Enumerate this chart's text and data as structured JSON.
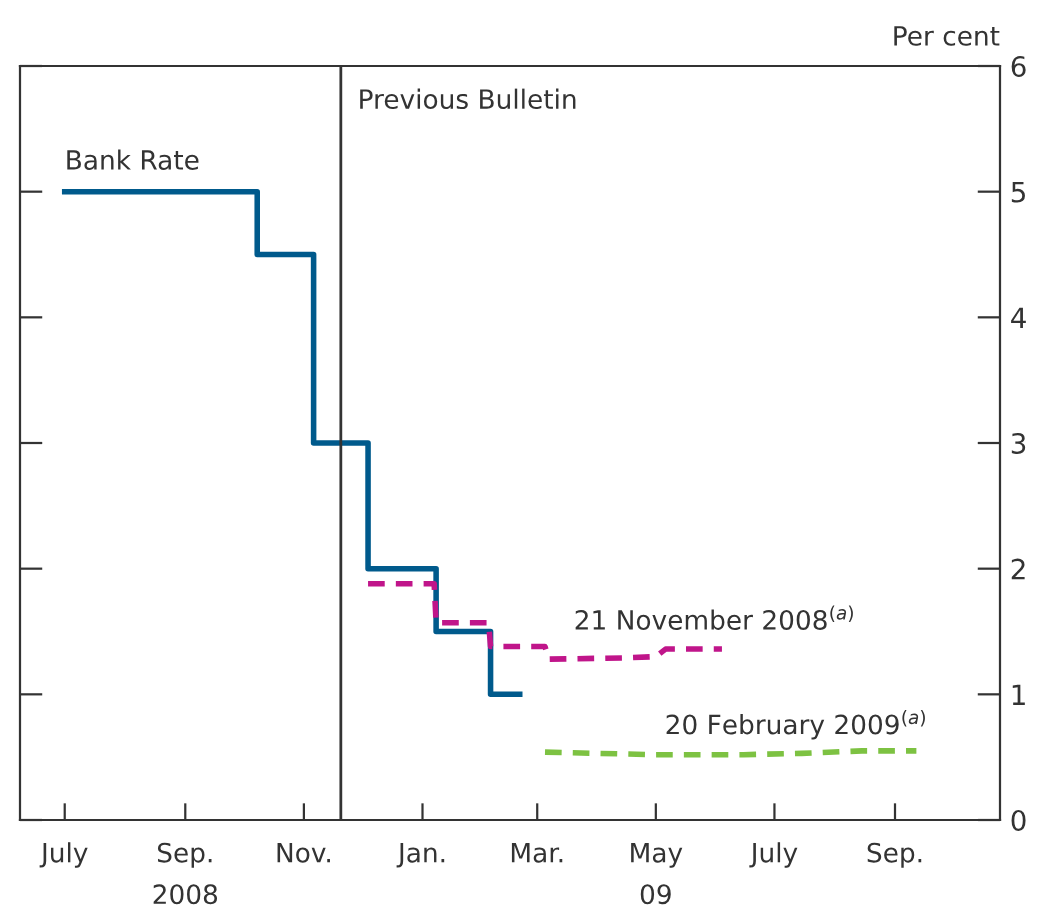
{
  "chart_data": {
    "type": "step",
    "ylabel": "Per cent",
    "x": [
      "2008-07-01",
      "2008-10-08",
      "2008-11-06",
      "2008-12-04",
      "2009-01-08",
      "2009-02-05",
      "2009-02-20"
    ],
    "series": [
      {
        "name": "Bank Rate",
        "color": "#005a8c",
        "values": [
          5,
          4.5,
          3,
          2,
          1.5,
          1,
          1
        ],
        "line_style": "solid"
      },
      {
        "name": "21 November 2008$^{(a)}$",
        "type": "line",
        "color": "#c0158a",
        "line_style": "dashed",
        "x": [
          "2008-12-04",
          "2009-01-07",
          "2009-01-08",
          "2009-02-04",
          "2009-02-05",
          "2009-03-05",
          "2009-03-07",
          "2009-04-15",
          "2009-05-01",
          "2009-05-06",
          "2009-06-04"
        ],
        "values": [
          1.88,
          1.88,
          1.57,
          1.57,
          1.38,
          1.38,
          1.28,
          1.29,
          1.3,
          1.36,
          1.36
        ]
      },
      {
        "name": "20 February 2009$^{(a)}$",
        "type": "line",
        "color": "#7dc242",
        "line_style": "dashed",
        "x": [
          "2009-03-05",
          "2009-04-01",
          "2009-05-01",
          "2009-06-15",
          "2009-07-15",
          "2009-08-15",
          "2009-09-12"
        ],
        "values": [
          0.54,
          0.53,
          0.52,
          0.52,
          0.53,
          0.55,
          0.55
        ]
      }
    ],
    "xlim": [
      "2008-06-08",
      "2009-10-25"
    ],
    "xticks": [
      {
        "value": "2008-07-01",
        "label": "July"
      },
      {
        "value": "2008-09-01",
        "label": "Sep.\n2008"
      },
      {
        "value": "2008-11-01",
        "label": "Nov."
      },
      {
        "value": "2009-01-01",
        "label": "Jan."
      },
      {
        "value": "2009-03-01",
        "label": "Mar."
      },
      {
        "value": "2009-05-01",
        "label": "May\n09"
      },
      {
        "value": "2009-07-01",
        "label": "July"
      },
      {
        "value": "2009-09-01",
        "label": "Sep."
      }
    ],
    "ylim": [
      0,
      6
    ],
    "yticks": [
      0,
      1,
      2,
      3,
      4,
      5,
      6
    ],
    "ref_lines": [
      {
        "axis": "x",
        "value": "2008-11-20",
        "label": "Previous Bulletin",
        "color": "#333333"
      }
    ],
    "grid": false,
    "legend": false
  }
}
